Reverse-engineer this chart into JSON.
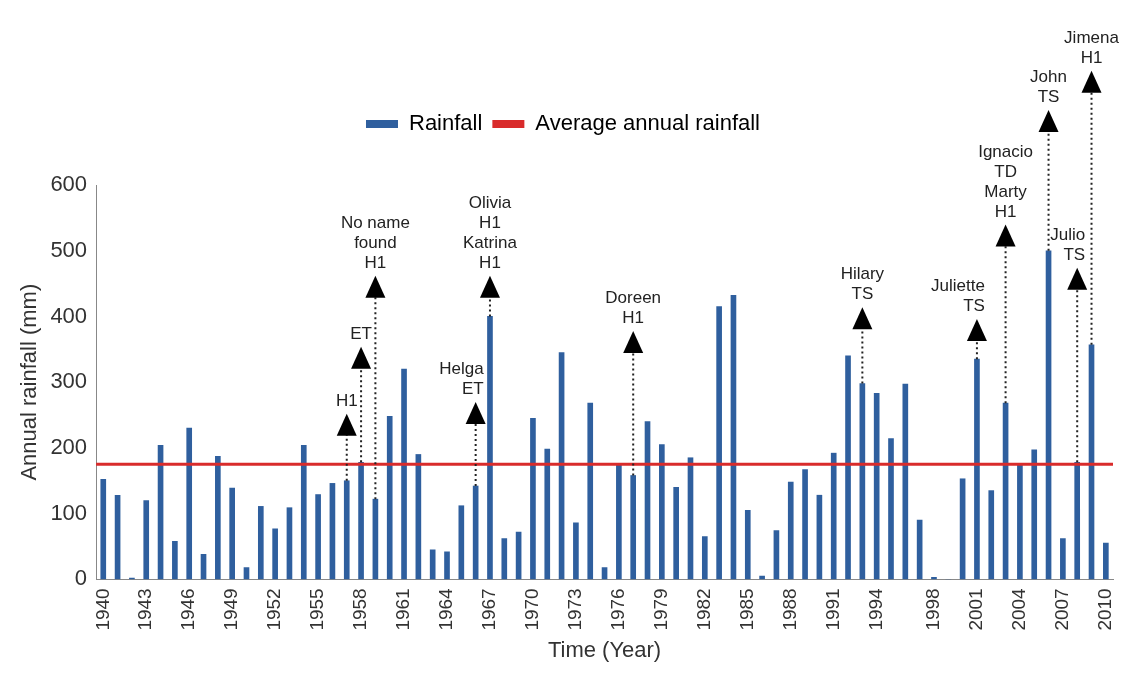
{
  "chart_data": {
    "type": "bar",
    "xlabel": "Time (Year)",
    "ylabel": "Annual rainfall (mm)",
    "x": [
      1940,
      1941,
      1942,
      1943,
      1944,
      1945,
      1946,
      1947,
      1948,
      1949,
      1950,
      1951,
      1952,
      1953,
      1954,
      1955,
      1956,
      1957,
      1958,
      1959,
      1960,
      1961,
      1962,
      1963,
      1964,
      1965,
      1966,
      1967,
      1968,
      1969,
      1970,
      1971,
      1972,
      1973,
      1974,
      1975,
      1976,
      1977,
      1978,
      1979,
      1980,
      1981,
      1982,
      1983,
      1984,
      1985,
      1986,
      1987,
      1988,
      1989,
      1990,
      1991,
      1992,
      1993,
      1994,
      1995,
      1996,
      1997,
      1998,
      1999,
      2000,
      2001,
      2002,
      2003,
      2004,
      2005,
      2006,
      2007,
      2008,
      2009,
      2010
    ],
    "series": [
      {
        "name": "Rainfall",
        "color": "#2f5f9e",
        "values": [
          152,
          128,
          2,
          120,
          204,
          58,
          230,
          38,
          187,
          139,
          18,
          111,
          77,
          109,
          204,
          129,
          146,
          150,
          178,
          122,
          248,
          320,
          190,
          45,
          42,
          112,
          142,
          400,
          62,
          72,
          245,
          198,
          345,
          86,
          268,
          18,
          175,
          158,
          240,
          205,
          140,
          185,
          65,
          415,
          432,
          105,
          5,
          74,
          148,
          167,
          128,
          192,
          340,
          298,
          283,
          214,
          297,
          90,
          3,
          0,
          153,
          335,
          135,
          268,
          175,
          197,
          500,
          62,
          178,
          357,
          55
        ]
      }
    ],
    "xlim": [
      1939.5,
      2010.5
    ],
    "xticks": [
      1940,
      1943,
      1946,
      1949,
      1952,
      1955,
      1958,
      1961,
      1964,
      1967,
      1970,
      1973,
      1976,
      1979,
      1982,
      1985,
      1988,
      1991,
      1994,
      1998,
      2001,
      2004,
      2007,
      2010
    ],
    "ylim": [
      0,
      600
    ],
    "yticks": [
      0,
      100,
      200,
      300,
      400,
      500,
      600
    ],
    "ref_lines": [
      {
        "axis": "y",
        "value": 175,
        "label": "Average annual rainfall",
        "color": "#d92b2b"
      }
    ],
    "annotations": [
      {
        "text": "H1",
        "x": 1957,
        "y": 150
      },
      {
        "text": "ET",
        "x": 1958,
        "y": 178
      },
      {
        "text": "No name\nfound\nH1",
        "x": 1959,
        "y": 122
      },
      {
        "text": "Helga\nET",
        "x": 1966,
        "y": 142
      },
      {
        "text": "Olivia\nH1\nKatrina\nH1",
        "x": 1967,
        "y": 400
      },
      {
        "text": "Doreen\nH1",
        "x": 1977,
        "y": 158
      },
      {
        "text": "Hilary\nTS",
        "x": 1993,
        "y": 298
      },
      {
        "text": "Juliette\nTS",
        "x": 2001,
        "y": 335
      },
      {
        "text": "Ignacio\nTD\nMarty\nH1",
        "x": 2003,
        "y": 268
      },
      {
        "text": "John\nTS",
        "x": 2006,
        "y": 500
      },
      {
        "text": "Julio\nTS",
        "x": 2008,
        "y": 178
      },
      {
        "text": "Jimena\nH1",
        "x": 2009,
        "y": 357
      }
    ],
    "legend": "top",
    "grid": false
  }
}
